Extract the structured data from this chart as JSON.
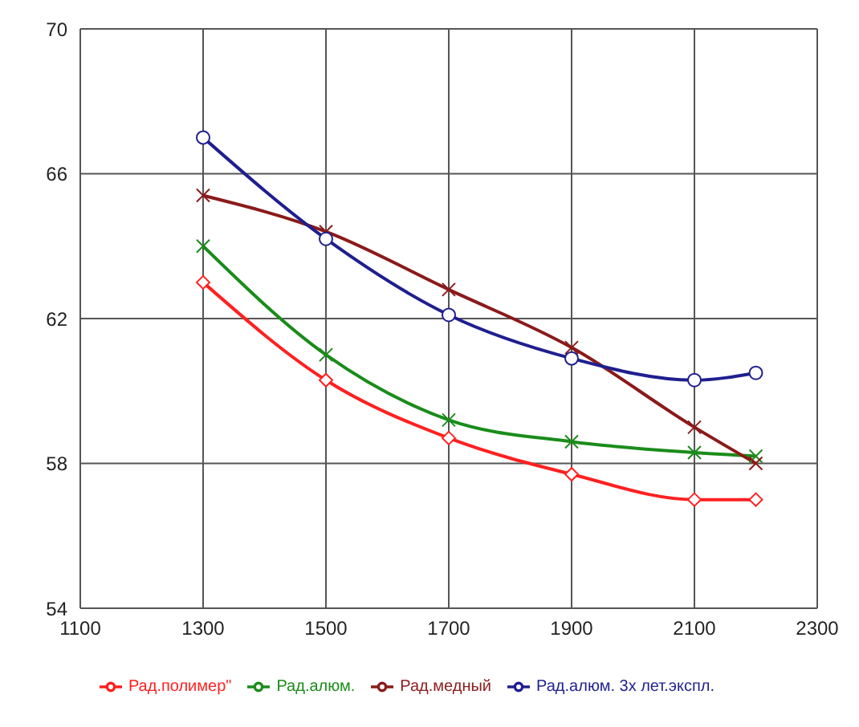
{
  "chart_data": {
    "type": "line",
    "x": [
      1300,
      1500,
      1700,
      1900,
      2100,
      2200
    ],
    "xlim": [
      1100,
      2300
    ],
    "xticks": [
      1100,
      1300,
      1500,
      1700,
      1900,
      2100,
      2300
    ],
    "ylim": [
      54,
      70
    ],
    "yticks": [
      54,
      58,
      62,
      66,
      70
    ],
    "grid": true,
    "legend": "bottom",
    "series": [
      {
        "name": "Рад.полимер\"",
        "color": "#ff2020",
        "marker": "diamond",
        "values": [
          63,
          60.3,
          58.7,
          57.7,
          57,
          57
        ]
      },
      {
        "name": "Рад.алюм.",
        "color": "#1a8c1a",
        "marker": "cross",
        "values": [
          64,
          61,
          59.2,
          58.6,
          58.3,
          58.2
        ]
      },
      {
        "name": "Рад.медный",
        "color": "#8b1a1a",
        "marker": "cross",
        "values": [
          65.4,
          64.4,
          62.8,
          61.2,
          59,
          58
        ]
      },
      {
        "name": "Рад.алюм. 3х лет.экспл.",
        "color": "#1f1f8f",
        "marker": "circle",
        "values": [
          67,
          64.2,
          62.1,
          60.9,
          60.3,
          60.5
        ]
      }
    ]
  }
}
